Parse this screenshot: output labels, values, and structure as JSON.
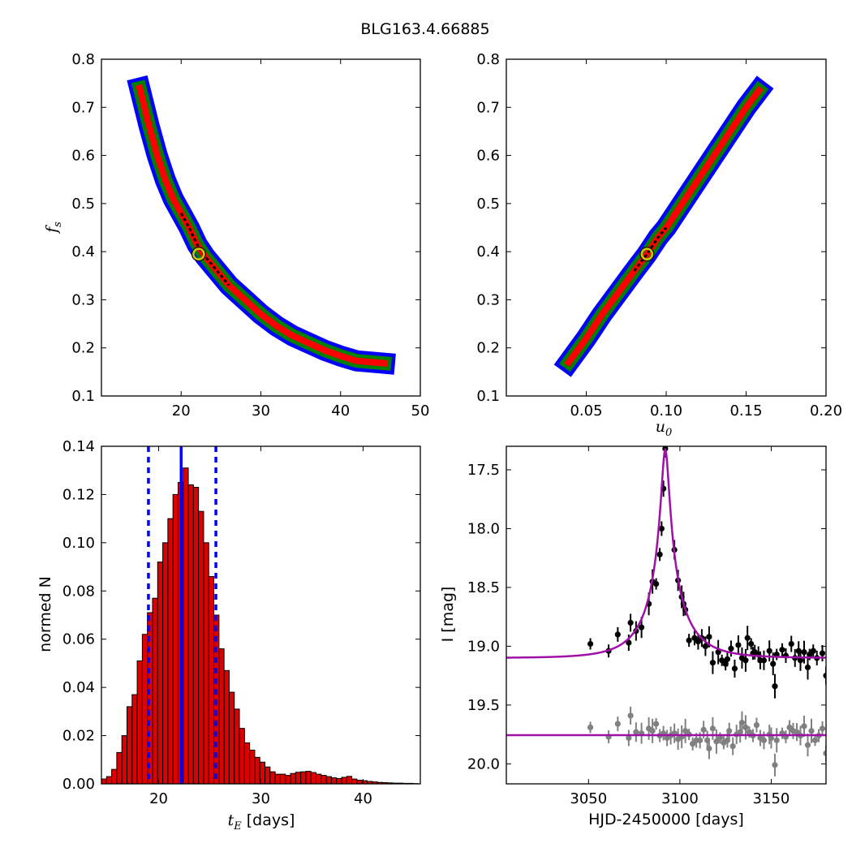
{
  "figure_title": "BLG163.4.66885",
  "chart_data": [
    {
      "id": "fs_vs_tE",
      "type": "heatmap",
      "xlabel": "",
      "ylabel_base": "f",
      "ylabel_sub": "s",
      "xlim": [
        10,
        50
      ],
      "ylim": [
        0.1,
        0.8
      ],
      "xticks": [
        20,
        30,
        40,
        50
      ],
      "yticks": [
        0.1,
        0.2,
        0.3,
        0.4,
        0.5,
        0.6,
        0.7,
        0.8
      ],
      "ridge": [
        [
          14.8,
          0.74
        ],
        [
          16,
          0.66
        ],
        [
          17,
          0.6
        ],
        [
          18,
          0.55
        ],
        [
          19,
          0.51
        ],
        [
          20,
          0.48
        ],
        [
          21,
          0.45
        ],
        [
          22,
          0.415
        ],
        [
          23,
          0.39
        ],
        [
          24,
          0.37
        ],
        [
          26,
          0.33
        ],
        [
          28,
          0.3
        ],
        [
          30,
          0.27
        ],
        [
          32,
          0.245
        ],
        [
          34,
          0.225
        ],
        [
          36,
          0.21
        ],
        [
          38,
          0.195
        ],
        [
          40,
          0.183
        ],
        [
          42,
          0.173
        ],
        [
          45.5,
          0.168
        ]
      ],
      "best_fit": [
        22.2,
        0.395
      ],
      "regions": [
        "blue",
        "green",
        "red",
        "black"
      ],
      "colors": {
        "blue": "#0000ff",
        "green": "#008000",
        "red": "#ff0000",
        "black": "#000000",
        "marker": "#c8c800"
      }
    },
    {
      "id": "fs_vs_u0",
      "type": "heatmap",
      "xlabel_base": "u",
      "xlabel_sub": "0",
      "ylabel": "",
      "xlim": [
        0.0,
        0.2
      ],
      "ylim": [
        0.1,
        0.8
      ],
      "xticks": [
        0.05,
        0.1,
        0.15,
        0.2
      ],
      "xtick_labels": [
        "0.05",
        "0.10",
        "0.15",
        "0.20"
      ],
      "yticks": [
        0.1,
        0.2,
        0.3,
        0.4,
        0.5,
        0.6,
        0.7,
        0.8
      ],
      "ridge": [
        [
          0.039,
          0.17
        ],
        [
          0.05,
          0.22
        ],
        [
          0.06,
          0.27
        ],
        [
          0.07,
          0.315
        ],
        [
          0.08,
          0.36
        ],
        [
          0.088,
          0.395
        ],
        [
          0.095,
          0.43
        ],
        [
          0.1,
          0.45
        ],
        [
          0.11,
          0.5
        ],
        [
          0.12,
          0.55
        ],
        [
          0.13,
          0.6
        ],
        [
          0.14,
          0.65
        ],
        [
          0.15,
          0.7
        ],
        [
          0.158,
          0.735
        ]
      ],
      "best_fit": [
        0.088,
        0.395
      ],
      "colors": {
        "blue": "#0000ff",
        "green": "#008000",
        "red": "#ff0000",
        "black": "#000000",
        "marker": "#c8c800"
      }
    },
    {
      "id": "tE_histogram",
      "type": "bar",
      "xlabel_base": "t",
      "xlabel_sub": "E",
      "xlabel_unit": "[days]",
      "ylabel": "normed N",
      "xlim": [
        14.4,
        45.6
      ],
      "ylim": [
        0,
        0.14
      ],
      "xticks": [
        20,
        30,
        40
      ],
      "yticks": [
        0.0,
        0.02,
        0.04,
        0.06,
        0.08,
        0.1,
        0.12,
        0.14
      ],
      "ytick_labels": [
        "0.00",
        "0.02",
        "0.04",
        "0.06",
        "0.08",
        "0.10",
        "0.12",
        "0.14"
      ],
      "bin_start": 14.4,
      "bin_width": 0.5,
      "values": [
        0.002,
        0.003,
        0.006,
        0.013,
        0.02,
        0.032,
        0.037,
        0.051,
        0.062,
        0.071,
        0.077,
        0.092,
        0.1,
        0.11,
        0.12,
        0.125,
        0.131,
        0.124,
        0.123,
        0.113,
        0.1,
        0.086,
        0.07,
        0.056,
        0.047,
        0.038,
        0.031,
        0.023,
        0.017,
        0.014,
        0.011,
        0.009,
        0.007,
        0.005,
        0.004,
        0.004,
        0.0035,
        0.0043,
        0.0048,
        0.005,
        0.0052,
        0.0047,
        0.004,
        0.0035,
        0.003,
        0.0025,
        0.0022,
        0.0027,
        0.0031,
        0.002,
        0.0015,
        0.0013,
        0.001,
        0.0008,
        0.0006,
        0.0005,
        0.0004,
        0.0003,
        0.0003,
        0.0002,
        0.0002,
        0.0001
      ],
      "median": 22.2,
      "lower": 19.0,
      "upper": 25.6,
      "colors": {
        "bar": "#dd0000",
        "edge": "#000000",
        "lines": "#0000ff"
      }
    },
    {
      "id": "light_curve",
      "type": "scatter",
      "xlabel": "HJD-2450000 [days]",
      "ylabel": "I [mag]",
      "xlim": [
        3005,
        3180
      ],
      "ylim": [
        20.17,
        17.3
      ],
      "xticks": [
        3050,
        3100,
        3150
      ],
      "yticks": [
        17.5,
        18.0,
        18.5,
        19.0,
        19.5,
        20.0
      ],
      "ytick_labels": [
        "17.5",
        "18.0",
        "18.5",
        "19.0",
        "19.5",
        "20.0"
      ],
      "model": {
        "t0": 3092,
        "tE": 22.2,
        "u0": 0.088,
        "fs": 0.395,
        "baseline": 19.1,
        "name": ""
      },
      "series": [
        {
          "name": "",
          "color": "#000000",
          "offset": 0,
          "points": [
            [
              3051,
              18.98
            ],
            [
              3061,
              19.04
            ],
            [
              3066,
              18.9
            ],
            [
              3072,
              18.97
            ],
            [
              3073,
              18.8
            ],
            [
              3076,
              18.87
            ],
            [
              3079,
              18.84
            ],
            [
              3083,
              18.64
            ],
            [
              3085,
              18.45
            ],
            [
              3087,
              18.47
            ],
            [
              3089,
              18.22
            ],
            [
              3090,
              18.0
            ],
            [
              3091,
              17.66
            ],
            [
              3092,
              17.32
            ],
            [
              3097,
              18.18
            ],
            [
              3099,
              18.44
            ],
            [
              3101,
              18.58
            ],
            [
              3102,
              18.64
            ],
            [
              3103,
              18.69
            ],
            [
              3105,
              18.95
            ],
            [
              3108,
              18.93
            ],
            [
              3110,
              18.96
            ],
            [
              3112,
              18.93
            ],
            [
              3114,
              19.0
            ],
            [
              3116,
              18.92
            ],
            [
              3118,
              19.14
            ],
            [
              3121,
              19.05
            ],
            [
              3123,
              19.12
            ],
            [
              3125,
              19.15
            ],
            [
              3126,
              19.11
            ],
            [
              3128,
              19.02
            ],
            [
              3130,
              19.19
            ],
            [
              3132,
              18.99
            ],
            [
              3134,
              19.1
            ],
            [
              3136,
              19.12
            ],
            [
              3137,
              18.93
            ],
            [
              3139,
              18.98
            ],
            [
              3140,
              19.06
            ],
            [
              3141,
              19.05
            ],
            [
              3143,
              19.07
            ],
            [
              3144,
              19.12
            ],
            [
              3146,
              19.12
            ],
            [
              3149,
              19.04
            ],
            [
              3151,
              19.15
            ],
            [
              3152,
              19.34
            ],
            [
              3153,
              19.07
            ],
            [
              3156,
              19.03
            ],
            [
              3158,
              19.08
            ],
            [
              3161,
              18.98
            ],
            [
              3163,
              19.1
            ],
            [
              3165,
              19.04
            ],
            [
              3166,
              19.12
            ],
            [
              3168,
              19.05
            ],
            [
              3170,
              19.18
            ],
            [
              3171,
              19.07
            ],
            [
              3173,
              19.04
            ],
            [
              3175,
              19.1
            ],
            [
              3178,
              19.06
            ],
            [
              3180,
              19.25
            ]
          ]
        },
        {
          "name": "",
          "color": "#808080",
          "offset": 0,
          "points": [
            [
              3051,
              19.69
            ],
            [
              3061,
              19.77
            ],
            [
              3066,
              19.66
            ],
            [
              3072,
              19.78
            ],
            [
              3073,
              19.59
            ],
            [
              3076,
              19.73
            ],
            [
              3079,
              19.74
            ],
            [
              3083,
              19.7
            ],
            [
              3085,
              19.72
            ],
            [
              3087,
              19.66
            ],
            [
              3089,
              19.76
            ],
            [
              3091,
              19.74
            ],
            [
              3093,
              19.78
            ],
            [
              3095,
              19.76
            ],
            [
              3097,
              19.74
            ],
            [
              3099,
              19.79
            ],
            [
              3101,
              19.77
            ],
            [
              3103,
              19.72
            ],
            [
              3105,
              19.75
            ],
            [
              3107,
              19.83
            ],
            [
              3109,
              19.8
            ],
            [
              3111,
              19.8
            ],
            [
              3113,
              19.71
            ],
            [
              3115,
              19.8
            ],
            [
              3116,
              19.87
            ],
            [
              3118,
              19.7
            ],
            [
              3120,
              19.81
            ],
            [
              3122,
              19.78
            ],
            [
              3124,
              19.82
            ],
            [
              3126,
              19.8
            ],
            [
              3127,
              19.72
            ],
            [
              3129,
              19.85
            ],
            [
              3131,
              19.75
            ],
            [
              3133,
              19.73
            ],
            [
              3134,
              19.65
            ],
            [
              3136,
              19.69
            ],
            [
              3138,
              19.73
            ],
            [
              3140,
              19.76
            ],
            [
              3142,
              19.67
            ],
            [
              3144,
              19.78
            ],
            [
              3146,
              19.8
            ],
            [
              3149,
              19.75
            ],
            [
              3150,
              19.78
            ],
            [
              3152,
              20.01
            ],
            [
              3153,
              19.8
            ],
            [
              3156,
              19.74
            ],
            [
              3158,
              19.77
            ],
            [
              3160,
              19.69
            ],
            [
              3162,
              19.72
            ],
            [
              3164,
              19.73
            ],
            [
              3166,
              19.76
            ],
            [
              3168,
              19.68
            ],
            [
              3170,
              19.84
            ],
            [
              3172,
              19.72
            ],
            [
              3174,
              19.8
            ],
            [
              3176,
              19.76
            ],
            [
              3178,
              19.7
            ],
            [
              3180,
              19.91
            ]
          ]
        }
      ],
      "colors": {
        "model": "#a010a8"
      }
    }
  ]
}
